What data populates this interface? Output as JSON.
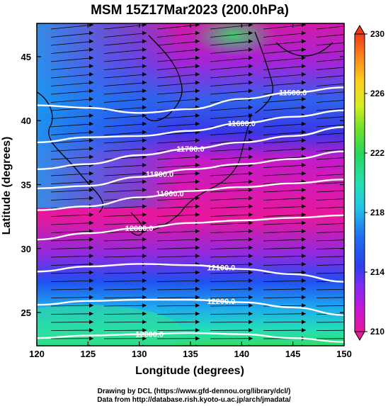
{
  "chart_data": {
    "type": "heatmap",
    "title": "MSM 15Z17Mar2023 (200.0hPa)",
    "xlabel": "Longitude (degrees)",
    "ylabel": "Latitude  (degrees)",
    "xlim": [
      120,
      150
    ],
    "ylim": [
      22.4,
      47.6
    ],
    "xticks": [
      120,
      125,
      130,
      135,
      140,
      145,
      150
    ],
    "yticks": [
      25,
      30,
      35,
      40,
      45
    ],
    "colorbar": {
      "min": 210,
      "max": 230,
      "ticks": [
        210,
        214,
        218,
        222,
        226,
        230
      ],
      "palette": [
        "#e8199b",
        "#c418d8",
        "#7a2cf5",
        "#2b3ff0",
        "#1f6ff0",
        "#22c8e6",
        "#22e0b0",
        "#29d65a",
        "#6fe22a",
        "#d4ee1f",
        "#fbd21c",
        "#fa8a1b",
        "#f03a17"
      ]
    },
    "contours": [
      {
        "label": "11500.0",
        "value": 11500,
        "points": [
          [
            120,
            41.2
          ],
          [
            125,
            41.0
          ],
          [
            130,
            40.6
          ],
          [
            135,
            40.9
          ],
          [
            140,
            41.7
          ],
          [
            145,
            42.2
          ],
          [
            150,
            42.6
          ]
        ]
      },
      {
        "label": "11600.0",
        "value": 11600,
        "points": [
          [
            120,
            38.3
          ],
          [
            125,
            38.7
          ],
          [
            130,
            38.8
          ],
          [
            135,
            39.2
          ],
          [
            140,
            39.8
          ],
          [
            145,
            40.3
          ],
          [
            150,
            40.8
          ]
        ]
      },
      {
        "label": "11700.0",
        "value": 11700,
        "points": [
          [
            120,
            36.2
          ],
          [
            125,
            36.6
          ],
          [
            130,
            37.3
          ],
          [
            135,
            37.8
          ],
          [
            140,
            38.3
          ],
          [
            145,
            38.8
          ],
          [
            150,
            39.5
          ]
        ]
      },
      {
        "label": "11800.0",
        "value": 11800,
        "points": [
          [
            120,
            34.7
          ],
          [
            125,
            34.9
          ],
          [
            130,
            35.6
          ],
          [
            135,
            36.2
          ],
          [
            140,
            36.6
          ],
          [
            145,
            37.0
          ],
          [
            150,
            37.6
          ]
        ]
      },
      {
        "label": "11900.0",
        "value": 11900,
        "points": [
          [
            120,
            33.0
          ],
          [
            125,
            33.3
          ],
          [
            130,
            34.0
          ],
          [
            135,
            34.5
          ],
          [
            140,
            34.8
          ],
          [
            145,
            35.1
          ],
          [
            150,
            35.4
          ]
        ]
      },
      {
        "label": "12000.0",
        "value": 12000,
        "points": [
          [
            120,
            30.7
          ],
          [
            125,
            31.2
          ],
          [
            130,
            31.6
          ],
          [
            135,
            32.0
          ],
          [
            140,
            32.2
          ],
          [
            145,
            32.4
          ],
          [
            150,
            32.6
          ]
        ]
      },
      {
        "label": "12100.0",
        "value": 12100,
        "points": [
          [
            120,
            28.2
          ],
          [
            125,
            28.6
          ],
          [
            130,
            28.8
          ],
          [
            135,
            28.7
          ],
          [
            140,
            28.4
          ],
          [
            145,
            28.0
          ],
          [
            150,
            27.4
          ]
        ]
      },
      {
        "label": "12200.0",
        "value": 12200,
        "points": [
          [
            120,
            25.6
          ],
          [
            125,
            25.9
          ],
          [
            130,
            26.0
          ],
          [
            135,
            26.0
          ],
          [
            140,
            25.8
          ],
          [
            145,
            25.4
          ],
          [
            150,
            24.8
          ]
        ]
      },
      {
        "label": "12300.0",
        "value": 12300,
        "points": [
          [
            120,
            23.0
          ],
          [
            125,
            23.2
          ],
          [
            130,
            23.3
          ],
          [
            135,
            23.4
          ],
          [
            140,
            23.3
          ],
          [
            145,
            23.0
          ],
          [
            150,
            22.7
          ]
        ]
      }
    ]
  },
  "footer": {
    "line1": "Drawing by DCL (https://www.gfd-dennou.org/library/dcl/)",
    "line2": "Data from http://database.rish.kyoto-u.ac.jp/arch/jmadata/"
  }
}
